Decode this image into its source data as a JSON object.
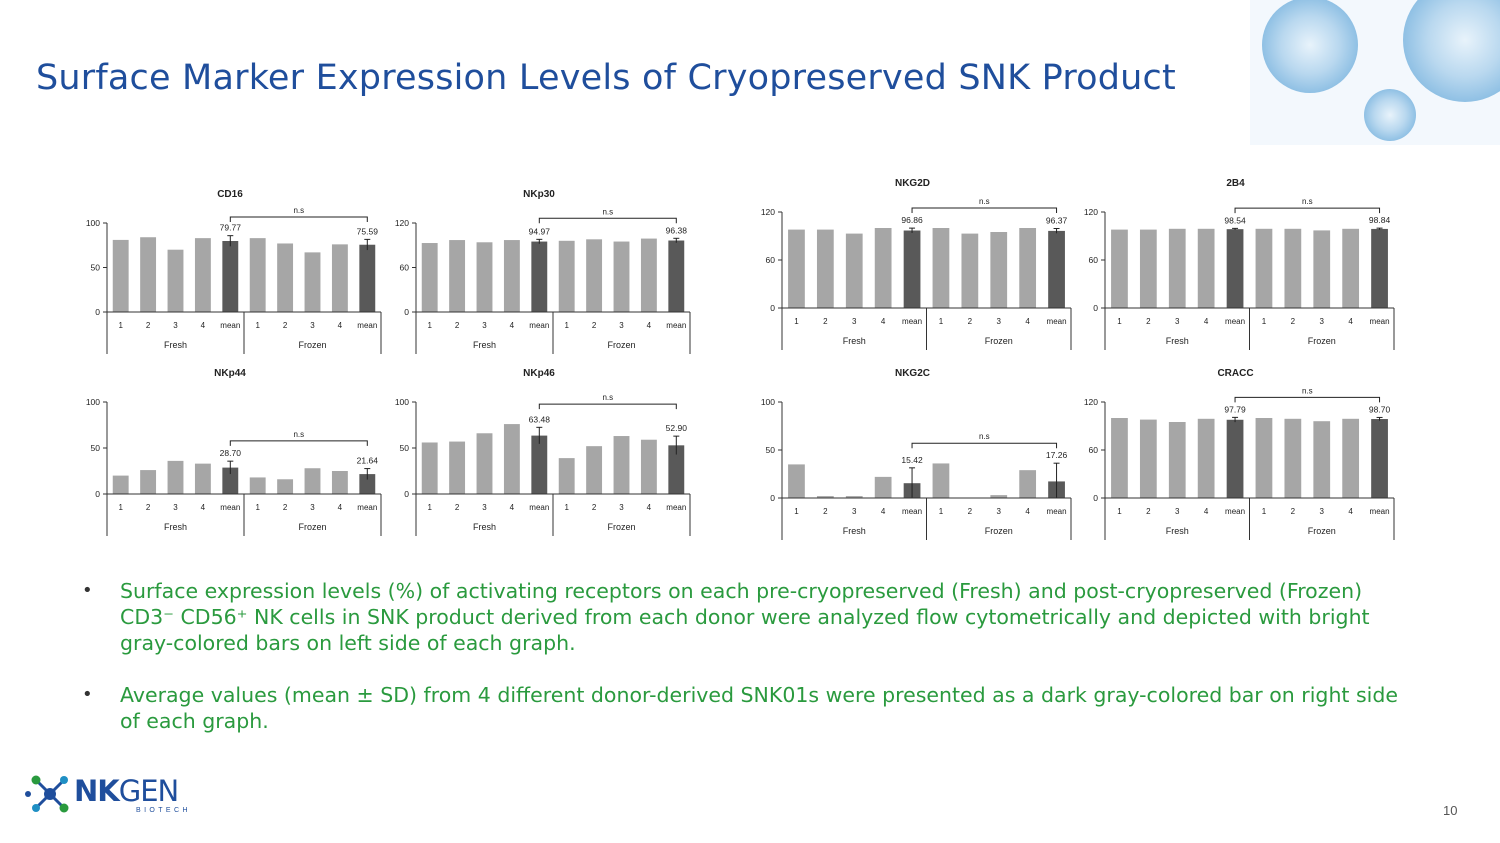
{
  "title": "Surface Marker Expression Levels of Cryopreserved SNK Product",
  "chart_data": [
    {
      "type": "bar",
      "title": "CD16",
      "categories": [
        "1",
        "2",
        "3",
        "4",
        "mean",
        "1",
        "2",
        "3",
        "4",
        "mean"
      ],
      "groups": [
        "Fresh",
        "Frozen"
      ],
      "values": [
        81,
        84,
        70,
        83,
        79.77,
        83,
        77,
        67,
        76,
        75.59
      ],
      "sd": [
        null,
        null,
        null,
        null,
        6,
        null,
        null,
        null,
        null,
        6
      ],
      "mean_labels": [
        "79.77",
        "75.59"
      ],
      "yticks": [
        "0",
        "50",
        "100"
      ],
      "ylim": [
        0,
        100
      ],
      "significance": "n.s"
    },
    {
      "type": "bar",
      "title": "NKp30",
      "categories": [
        "1",
        "2",
        "3",
        "4",
        "mean",
        "1",
        "2",
        "3",
        "4",
        "mean"
      ],
      "groups": [
        "Fresh",
        "Frozen"
      ],
      "values": [
        93,
        97,
        94,
        97,
        94.97,
        96,
        98,
        95,
        99,
        96.38
      ],
      "sd": [
        null,
        null,
        null,
        null,
        3,
        null,
        null,
        null,
        null,
        3
      ],
      "mean_labels": [
        "94.97",
        "96.38"
      ],
      "yticks": [
        "0",
        "60",
        "120"
      ],
      "ylim": [
        0,
        120
      ],
      "significance": "n.s"
    },
    {
      "type": "bar",
      "title": "NKG2D",
      "categories": [
        "1",
        "2",
        "3",
        "4",
        "mean",
        "1",
        "2",
        "3",
        "4",
        "mean"
      ],
      "groups": [
        "Fresh",
        "Frozen"
      ],
      "values": [
        98,
        98,
        93,
        100,
        96.86,
        100,
        93,
        95,
        100,
        96.37
      ],
      "sd": [
        null,
        null,
        null,
        null,
        3,
        null,
        null,
        null,
        null,
        3
      ],
      "mean_labels": [
        "96.86",
        "96.37"
      ],
      "yticks": [
        "0",
        "60",
        "120"
      ],
      "ylim": [
        0,
        120
      ],
      "significance": "n.s"
    },
    {
      "type": "bar",
      "title": "2B4",
      "categories": [
        "1",
        "2",
        "3",
        "4",
        "mean",
        "1",
        "2",
        "3",
        "4",
        "mean"
      ],
      "groups": [
        "Fresh",
        "Frozen"
      ],
      "values": [
        98,
        98,
        99,
        99,
        98.54,
        99,
        99,
        97,
        99,
        98.84
      ],
      "sd": [
        null,
        null,
        null,
        null,
        1,
        null,
        null,
        null,
        null,
        1
      ],
      "mean_labels": [
        "98.54",
        "98.84"
      ],
      "yticks": [
        "0",
        "60",
        "120"
      ],
      "ylim": [
        0,
        120
      ],
      "significance": "n.s"
    },
    {
      "type": "bar",
      "title": "NKp44",
      "categories": [
        "1",
        "2",
        "3",
        "4",
        "mean",
        "1",
        "2",
        "3",
        "4",
        "mean"
      ],
      "groups": [
        "Fresh",
        "Frozen"
      ],
      "values": [
        20,
        26,
        36,
        33,
        28.7,
        18,
        16,
        28,
        25,
        21.64
      ],
      "sd": [
        null,
        null,
        null,
        null,
        7,
        null,
        null,
        null,
        null,
        6
      ],
      "mean_labels": [
        "28.70",
        "21.64"
      ],
      "yticks": [
        "0",
        "50",
        "100"
      ],
      "ylim": [
        0,
        100
      ],
      "significance": "n.s"
    },
    {
      "type": "bar",
      "title": "NKp46",
      "categories": [
        "1",
        "2",
        "3",
        "4",
        "mean",
        "1",
        "2",
        "3",
        "4",
        "mean"
      ],
      "groups": [
        "Fresh",
        "Frozen"
      ],
      "values": [
        56,
        57,
        66,
        76,
        63.48,
        39,
        52,
        63,
        59,
        52.9
      ],
      "sd": [
        null,
        null,
        null,
        null,
        9,
        null,
        null,
        null,
        null,
        10
      ],
      "mean_labels": [
        "63.48",
        "52.90"
      ],
      "yticks": [
        "0",
        "50",
        "100"
      ],
      "ylim": [
        0,
        100
      ],
      "significance": "n.s"
    },
    {
      "type": "bar",
      "title": "NKG2C",
      "categories": [
        "1",
        "2",
        "3",
        "4",
        "mean",
        "1",
        "2",
        "3",
        "4",
        "mean"
      ],
      "groups": [
        "Fresh",
        "Frozen"
      ],
      "values": [
        35,
        2,
        2,
        22,
        15.42,
        36,
        0,
        3,
        29,
        17.26
      ],
      "sd": [
        null,
        null,
        null,
        null,
        16,
        null,
        null,
        null,
        null,
        19
      ],
      "mean_labels": [
        "15.42",
        "17.26"
      ],
      "yticks": [
        "0",
        "50",
        "100"
      ],
      "ylim": [
        0,
        100
      ],
      "significance": "n.s"
    },
    {
      "type": "bar",
      "title": "CRACC",
      "categories": [
        "1",
        "2",
        "3",
        "4",
        "mean",
        "1",
        "2",
        "3",
        "4",
        "mean"
      ],
      "groups": [
        "Fresh",
        "Frozen"
      ],
      "values": [
        100,
        98,
        95,
        99,
        97.79,
        100,
        99,
        96,
        99,
        98.7
      ],
      "sd": [
        null,
        null,
        null,
        null,
        3,
        null,
        null,
        null,
        null,
        2
      ],
      "mean_labels": [
        "97.79",
        "98.70"
      ],
      "yticks": [
        "0",
        "60",
        "120"
      ],
      "ylim": [
        0,
        120
      ],
      "significance": "n.s"
    }
  ],
  "bullets": [
    "Surface expression levels (%) of activating receptors on each pre-cryopreserved (Fresh) and post-cryopreserved (Frozen) CD3⁻ CD56⁺ NK cells in SNK product derived from each donor were analyzed flow cytometrically and depicted with bright gray-colored bars on left side of each graph.",
    "Average values (mean ± SD) from 4 different donor-derived SNK01s were presented as a dark gray-colored bar on right side of each graph."
  ],
  "bullet_symbol": "•",
  "logo": {
    "name_bold": "NK",
    "name_light": "GEN",
    "sub": "BIOTECH"
  },
  "page_number": "10",
  "colors": {
    "title": "#1f4e9c",
    "bullet_text": "#2a9a3e",
    "bar_light": "#a6a6a6",
    "bar_dark": "#595959"
  }
}
